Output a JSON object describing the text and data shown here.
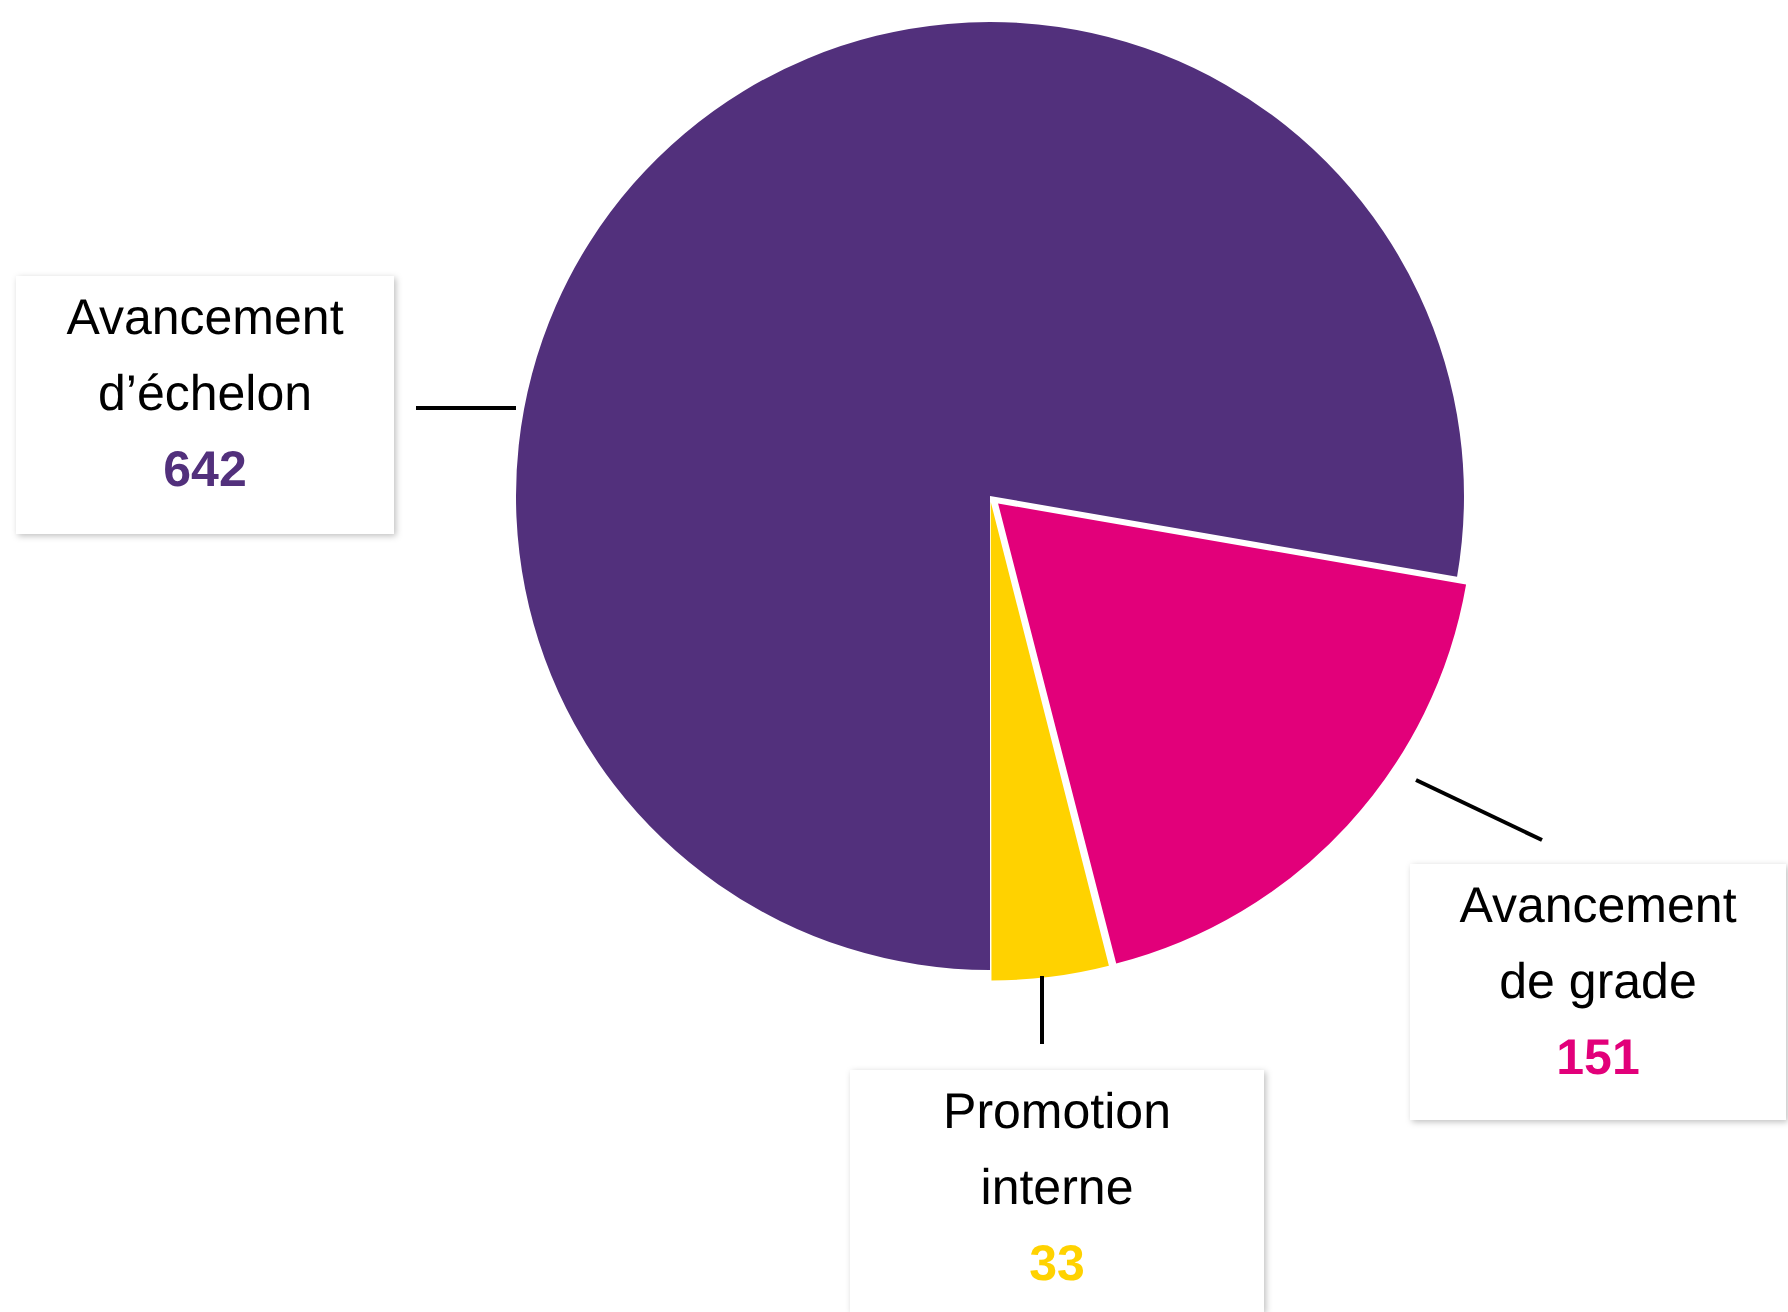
{
  "chart_data": {
    "type": "pie",
    "categories": [
      "Avancement d’échelon",
      "Avancement de grade",
      "Promotion interne"
    ],
    "values": [
      642,
      151,
      33
    ],
    "colors": [
      "#52307c",
      "#e2007a",
      "#ffd200"
    ],
    "data_labels": true,
    "legend": false
  }
}
